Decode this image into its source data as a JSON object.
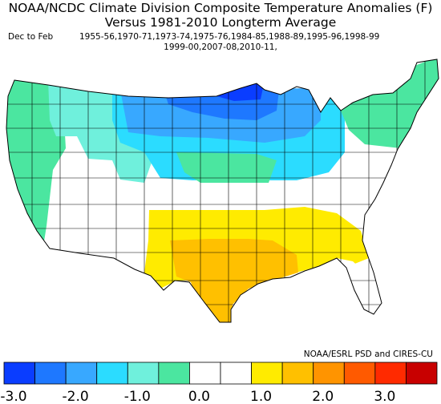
{
  "title": {
    "line1": "NOAA/NCDC Climate Division Composite Temperature Anomalies (F)",
    "line2": "Versus 1981-2010 Longterm Average"
  },
  "season": "Dec to Feb",
  "years_line1": "1955-56,1970-71,1973-74,1975-76,1984-85,1988-89,1995-96,1998-99",
  "years_line2": "1999-00,2007-08,2010-11,",
  "credit": "NOAA/ESRL PSD and CIRES-CU",
  "colorbar": {
    "colors": [
      "#0a3dff",
      "#1e78ff",
      "#38a8ff",
      "#2bdcff",
      "#6ff0dc",
      "#4be6a0",
      "#ffffff",
      "#ffffff",
      "#ffeb00",
      "#ffc000",
      "#ff9400",
      "#ff5a00",
      "#ff2a00",
      "#c80000"
    ],
    "tick_labels": [
      "-3.0",
      "-2.0",
      "-1.0",
      "0.0",
      "1.0",
      "2.0",
      "3.0"
    ]
  },
  "chart_data": {
    "type": "heatmap",
    "variable": "Temperature anomaly (F)",
    "scale_min": -3.0,
    "scale_max": 3.0,
    "regions": [
      {
        "region": "Upper Midwest / northern Plains (MN, WI, ND)",
        "anomaly": -2.5
      },
      {
        "region": "Northern Rockies / Montana",
        "anomaly": -2.0
      },
      {
        "region": "Pacific Northwest",
        "anomaly": -1.0
      },
      {
        "region": "Central Plains (NE, IA, SD)",
        "anomaly": -1.0
      },
      {
        "region": "Northeast / New England",
        "anomaly": -1.0
      },
      {
        "region": "Great Basin / interior West",
        "anomaly": 0.0
      },
      {
        "region": "Ohio Valley / Mid-Atlantic",
        "anomaly": 0.0
      },
      {
        "region": "Southwest",
        "anomaly": 0.0
      },
      {
        "region": "Southeast",
        "anomaly": 0.5
      },
      {
        "region": "Texas / Louisiana Gulf Coast",
        "anomaly": 1.5
      },
      {
        "region": "Florida peninsula",
        "anomaly": 0.0
      }
    ]
  }
}
